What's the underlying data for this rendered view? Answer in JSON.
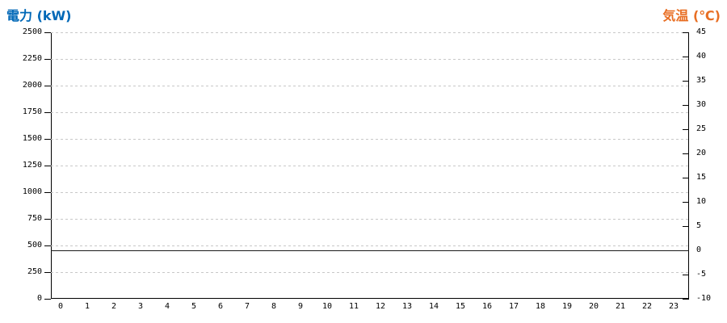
{
  "chart_data": {
    "type": "line",
    "title": "",
    "series": [],
    "x_axis": {
      "ticks": [
        "0",
        "1",
        "2",
        "3",
        "4",
        "5",
        "6",
        "7",
        "8",
        "9",
        "10",
        "11",
        "12",
        "13",
        "14",
        "15",
        "16",
        "17",
        "18",
        "19",
        "20",
        "21",
        "22",
        "23"
      ]
    },
    "left_axis": {
      "title": "電力 (kW)",
      "title_color": "#0068b7",
      "min": 0,
      "max": 2500,
      "tick_step": 250,
      "ticks": [
        0,
        250,
        500,
        750,
        1000,
        1250,
        1500,
        1750,
        2000,
        2250,
        2500
      ]
    },
    "right_axis": {
      "title": "気温 (℃)",
      "title_color": "#e86e23",
      "min": -10,
      "max": 45,
      "tick_step": 5,
      "ticks": [
        -10,
        -5,
        0,
        5,
        10,
        15,
        20,
        25,
        30,
        35,
        40,
        45
      ]
    },
    "gridlines": {
      "orientation": "horizontal",
      "style": "dashed",
      "color": "#c8c8c8",
      "aligned_to": "left_axis_ticks"
    },
    "baseline": {
      "axis": "right",
      "value": 0,
      "style": "solid",
      "color": "#1a1a1a"
    },
    "legend": "none",
    "plot_background": "#ffffff"
  }
}
